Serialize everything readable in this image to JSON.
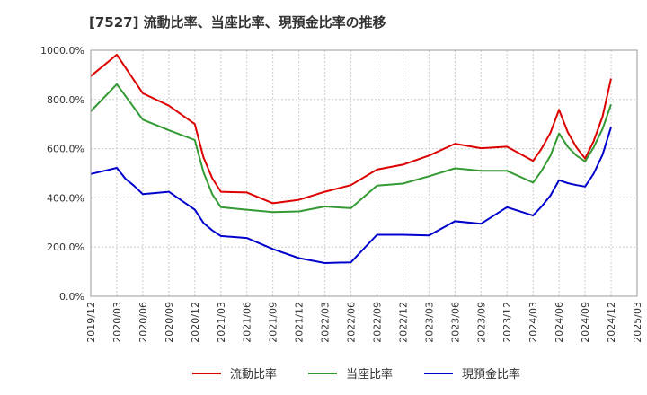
{
  "title": "[7527]  流動比率、当座比率、現預金比率の推移",
  "chart_data": {
    "type": "line",
    "ylim": [
      0,
      1000
    ],
    "yticks": [
      "0.0%",
      "200.0%",
      "400.0%",
      "600.0%",
      "800.0%",
      "1000.0%"
    ],
    "ytick_values": [
      0,
      200,
      400,
      600,
      800,
      1000
    ],
    "xticks": [
      "2019/12",
      "2020/03",
      "2020/06",
      "2020/09",
      "2020/12",
      "2021/03",
      "2021/06",
      "2021/09",
      "2021/12",
      "2022/03",
      "2022/06",
      "2022/09",
      "2022/12",
      "2023/03",
      "2023/06",
      "2023/09",
      "2023/12",
      "2024/03",
      "2024/06",
      "2024/09",
      "2024/12",
      "2025/03"
    ],
    "grid": true,
    "legend_position": "bottom",
    "series": [
      {
        "name": "流動比率",
        "color": "#dd0000",
        "x": [
          0,
          1,
          2,
          3,
          4,
          4.33,
          4.67,
          5,
          6,
          7,
          8,
          9,
          10,
          11,
          12,
          13,
          14,
          15,
          16,
          17,
          17.33,
          17.67,
          18,
          18.33,
          18.67,
          19,
          19.33,
          19.67,
          20
        ],
        "values": [
          895,
          982,
          825,
          775,
          700,
          565,
          480,
          425,
          422,
          378,
          392,
          425,
          452,
          515,
          535,
          572,
          620,
          602,
          608,
          550,
          600,
          665,
          758,
          668,
          605,
          560,
          630,
          730,
          885
        ]
      },
      {
        "name": "当座比率",
        "color": "#339933",
        "x": [
          0,
          1,
          2,
          3,
          4,
          4.33,
          4.67,
          5,
          6,
          7,
          8,
          9,
          10,
          11,
          12,
          13,
          14,
          15,
          16,
          17,
          17.33,
          17.67,
          18,
          18.33,
          18.67,
          19,
          19.33,
          19.67,
          20
        ],
        "values": [
          752,
          862,
          718,
          675,
          635,
          505,
          415,
          362,
          352,
          342,
          345,
          365,
          358,
          450,
          458,
          488,
          520,
          510,
          510,
          462,
          510,
          572,
          662,
          608,
          572,
          548,
          605,
          680,
          780
        ]
      },
      {
        "name": "現預金比率",
        "color": "#0000cc",
        "x": [
          0,
          1,
          1.33,
          1.67,
          2,
          3,
          4,
          4.33,
          4.67,
          5,
          6,
          7,
          8,
          9,
          10,
          11,
          12,
          13,
          14,
          15,
          16,
          17,
          17.33,
          17.67,
          18,
          18.33,
          18.67,
          19,
          19.33,
          19.67,
          20
        ],
        "values": [
          497,
          522,
          478,
          448,
          415,
          425,
          352,
          298,
          268,
          245,
          237,
          192,
          155,
          135,
          138,
          250,
          250,
          247,
          305,
          295,
          362,
          328,
          365,
          410,
          472,
          460,
          452,
          446,
          498,
          575,
          688
        ]
      }
    ]
  }
}
